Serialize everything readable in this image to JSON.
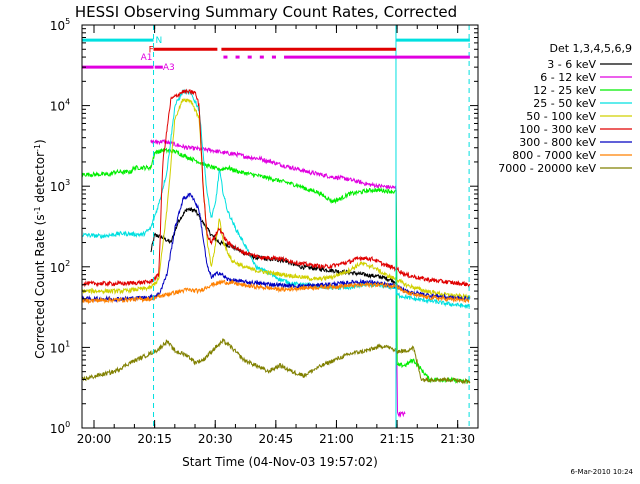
{
  "chart_data": {
    "type": "line",
    "title": "HESSI Observing Summary Count Rates, Corrected",
    "xlabel": "Start Time (04-Nov-03 19:57:02)",
    "ylabel": "Corrected Count Rate (s⁻¹ detector⁻¹)",
    "ylabel_parts": {
      "base": "Corrected Count Rate (s",
      "sup1": "-1",
      "mid": " detector",
      "sup2": "-1",
      "end": ")"
    },
    "x_units": "minutes after 19:57:02",
    "xlim": [
      0,
      98
    ],
    "ylim": [
      1,
      100000
    ],
    "yscale": "log",
    "x_ticks": [
      {
        "label": "20:00",
        "x": 2.97
      },
      {
        "label": "20:15",
        "x": 17.97
      },
      {
        "label": "20:30",
        "x": 32.97
      },
      {
        "label": "20:45",
        "x": 47.97
      },
      {
        "label": "21:00",
        "x": 62.97
      },
      {
        "label": "21:15",
        "x": 77.97
      },
      {
        "label": "21:30",
        "x": 92.97
      }
    ],
    "y_ticks": [
      {
        "base": "10",
        "exp": "0",
        "y": 1
      },
      {
        "base": "10",
        "exp": "1",
        "y": 10
      },
      {
        "base": "10",
        "exp": "2",
        "y": 100
      },
      {
        "base": "10",
        "exp": "3",
        "y": 1000
      },
      {
        "base": "10",
        "exp": "4",
        "y": 10000
      },
      {
        "base": "10",
        "exp": "5",
        "y": 100000
      }
    ],
    "legend_title": "Det 1,3,4,5,6,9",
    "legend_position": "right",
    "series": [
      {
        "name": "3 - 6 keV",
        "color": "#000000",
        "points": [
          [
            17,
            150
          ],
          [
            18,
            250
          ],
          [
            20,
            230
          ],
          [
            22,
            200
          ],
          [
            24,
            380
          ],
          [
            26,
            520
          ],
          [
            28,
            500
          ],
          [
            30,
            350
          ],
          [
            32,
            250
          ],
          [
            34,
            200
          ],
          [
            37,
            180
          ],
          [
            40,
            150
          ],
          [
            43,
            130
          ],
          [
            46,
            125
          ],
          [
            50,
            120
          ],
          [
            54,
            100
          ],
          [
            58,
            95
          ],
          [
            62,
            90
          ],
          [
            66,
            85
          ],
          [
            70,
            80
          ],
          [
            74,
            75
          ],
          [
            76,
            70
          ],
          [
            77.8,
            65
          ]
        ]
      },
      {
        "name": "6 - 12 keV",
        "color": "#e000e0",
        "points": [
          [
            17,
            3500
          ],
          [
            20,
            3600
          ],
          [
            23,
            3300
          ],
          [
            26,
            3000
          ],
          [
            29,
            2900
          ],
          [
            32,
            2800
          ],
          [
            35,
            2600
          ],
          [
            38,
            2500
          ],
          [
            41,
            2300
          ],
          [
            44,
            2200
          ],
          [
            47,
            2000
          ],
          [
            50,
            1800
          ],
          [
            53,
            1650
          ],
          [
            56,
            1500
          ],
          [
            59,
            1400
          ],
          [
            62,
            1300
          ],
          [
            65,
            1250
          ],
          [
            68,
            1150
          ],
          [
            71,
            1050
          ],
          [
            74,
            1000
          ],
          [
            77.8,
            950
          ],
          [
            78,
            1.5
          ],
          [
            80,
            1.5
          ]
        ]
      },
      {
        "name": "12 - 25 keV",
        "color": "#00ee00",
        "points": [
          [
            0,
            1400
          ],
          [
            7,
            1400
          ],
          [
            8,
            1500
          ],
          [
            12,
            1500
          ],
          [
            13,
            1700
          ],
          [
            17,
            1700
          ],
          [
            18,
            2600
          ],
          [
            20,
            2800
          ],
          [
            23,
            2700
          ],
          [
            26,
            2300
          ],
          [
            28,
            2100
          ],
          [
            31,
            1800
          ],
          [
            34,
            1600
          ],
          [
            36,
            1700
          ],
          [
            39,
            1500
          ],
          [
            42,
            1400
          ],
          [
            45,
            1300
          ],
          [
            48,
            1200
          ],
          [
            51,
            1100
          ],
          [
            54,
            1000
          ],
          [
            56,
            900
          ],
          [
            58,
            860
          ],
          [
            60,
            750
          ],
          [
            62,
            650
          ],
          [
            64,
            700
          ],
          [
            66,
            800
          ],
          [
            69,
            850
          ],
          [
            72,
            900
          ],
          [
            75,
            880
          ],
          [
            77.8,
            850
          ],
          [
            78,
            6
          ],
          [
            80,
            6
          ],
          [
            82,
            7
          ],
          [
            86,
            4
          ],
          [
            90,
            4
          ],
          [
            94,
            3.8
          ],
          [
            96,
            3.8
          ]
        ]
      },
      {
        "name": "25 - 50 keV",
        "color": "#00e0e0",
        "points": [
          [
            0,
            250
          ],
          [
            5,
            240
          ],
          [
            10,
            260
          ],
          [
            15,
            250
          ],
          [
            17,
            300
          ],
          [
            19,
            600
          ],
          [
            21,
            1500
          ],
          [
            23,
            10000
          ],
          [
            25,
            15000
          ],
          [
            27,
            14000
          ],
          [
            29,
            9000
          ],
          [
            30,
            2500
          ],
          [
            31,
            800
          ],
          [
            32,
            400
          ],
          [
            33,
            600
          ],
          [
            34,
            1600
          ],
          [
            35,
            800
          ],
          [
            36,
            500
          ],
          [
            38,
            300
          ],
          [
            40,
            200
          ],
          [
            43,
            100
          ],
          [
            46,
            85
          ],
          [
            49,
            70
          ],
          [
            52,
            62
          ],
          [
            55,
            60
          ],
          [
            58,
            58
          ],
          [
            62,
            55
          ],
          [
            66,
            55
          ],
          [
            70,
            60
          ],
          [
            74,
            58
          ],
          [
            77.8,
            55
          ],
          [
            78,
            45
          ],
          [
            82,
            40
          ],
          [
            86,
            38
          ],
          [
            90,
            35
          ],
          [
            94,
            33
          ],
          [
            96,
            32
          ]
        ]
      },
      {
        "name": "50 - 100 keV",
        "color": "#d0d000",
        "points": [
          [
            0,
            50
          ],
          [
            10,
            50
          ],
          [
            17,
            55
          ],
          [
            19,
            70
          ],
          [
            21,
            500
          ],
          [
            23,
            7000
          ],
          [
            25,
            12000
          ],
          [
            27,
            11500
          ],
          [
            29,
            7000
          ],
          [
            30,
            1000
          ],
          [
            31,
            200
          ],
          [
            32,
            100
          ],
          [
            33,
            180
          ],
          [
            34,
            400
          ],
          [
            35,
            200
          ],
          [
            37,
            120
          ],
          [
            40,
            100
          ],
          [
            43,
            90
          ],
          [
            46,
            85
          ],
          [
            50,
            80
          ],
          [
            54,
            75
          ],
          [
            58,
            70
          ],
          [
            62,
            75
          ],
          [
            66,
            90
          ],
          [
            69,
            110
          ],
          [
            72,
            100
          ],
          [
            75,
            80
          ],
          [
            77.8,
            70
          ],
          [
            80,
            60
          ],
          [
            85,
            50
          ],
          [
            90,
            45
          ],
          [
            96,
            42
          ]
        ]
      },
      {
        "name": "100 - 300 keV",
        "color": "#e00000",
        "points": [
          [
            0,
            62
          ],
          [
            10,
            62
          ],
          [
            17,
            65
          ],
          [
            19,
            80
          ],
          [
            20,
            2000
          ],
          [
            22,
            12000
          ],
          [
            25,
            15000
          ],
          [
            28,
            14500
          ],
          [
            29,
            10000
          ],
          [
            30,
            900
          ],
          [
            31,
            250
          ],
          [
            32,
            200
          ],
          [
            34,
            300
          ],
          [
            36,
            200
          ],
          [
            39,
            160
          ],
          [
            42,
            140
          ],
          [
            45,
            130
          ],
          [
            48,
            130
          ],
          [
            51,
            120
          ],
          [
            54,
            110
          ],
          [
            57,
            105
          ],
          [
            60,
            100
          ],
          [
            63,
            105
          ],
          [
            66,
            115
          ],
          [
            69,
            130
          ],
          [
            72,
            125
          ],
          [
            75,
            105
          ],
          [
            77.8,
            95
          ],
          [
            80,
            80
          ],
          [
            85,
            70
          ],
          [
            90,
            65
          ],
          [
            96,
            60
          ]
        ]
      },
      {
        "name": "300 - 800 keV",
        "color": "#0000c0",
        "points": [
          [
            0,
            40
          ],
          [
            10,
            40
          ],
          [
            17,
            42
          ],
          [
            19,
            45
          ],
          [
            21,
            80
          ],
          [
            23,
            300
          ],
          [
            25,
            700
          ],
          [
            27,
            800
          ],
          [
            29,
            500
          ],
          [
            31,
            100
          ],
          [
            32,
            75
          ],
          [
            34,
            85
          ],
          [
            36,
            70
          ],
          [
            40,
            65
          ],
          [
            44,
            62
          ],
          [
            48,
            60
          ],
          [
            52,
            58
          ],
          [
            56,
            58
          ],
          [
            60,
            60
          ],
          [
            64,
            62
          ],
          [
            68,
            65
          ],
          [
            72,
            64
          ],
          [
            75,
            60
          ],
          [
            77.8,
            58
          ],
          [
            80,
            50
          ],
          [
            85,
            45
          ],
          [
            90,
            42
          ],
          [
            96,
            40
          ]
        ]
      },
      {
        "name": "800 - 7000 keV",
        "color": "#ff8000",
        "points": [
          [
            0,
            38
          ],
          [
            10,
            39
          ],
          [
            17,
            40
          ],
          [
            20,
            44
          ],
          [
            23,
            48
          ],
          [
            26,
            52
          ],
          [
            29,
            50
          ],
          [
            32,
            60
          ],
          [
            35,
            65
          ],
          [
            38,
            62
          ],
          [
            41,
            58
          ],
          [
            44,
            56
          ],
          [
            47,
            54
          ],
          [
            50,
            52
          ],
          [
            53,
            54
          ],
          [
            56,
            55
          ],
          [
            59,
            56
          ],
          [
            62,
            57
          ],
          [
            65,
            58
          ],
          [
            68,
            59
          ],
          [
            71,
            60
          ],
          [
            74,
            60
          ],
          [
            77.8,
            58
          ],
          [
            80,
            48
          ],
          [
            85,
            42
          ],
          [
            90,
            40
          ],
          [
            96,
            38
          ]
        ]
      },
      {
        "name": "7000 - 20000 keV",
        "color": "#808000",
        "points": [
          [
            0,
            4
          ],
          [
            4,
            4.5
          ],
          [
            8,
            5
          ],
          [
            12,
            6.5
          ],
          [
            16,
            8
          ],
          [
            19,
            9.5
          ],
          [
            21,
            12
          ],
          [
            23,
            9
          ],
          [
            26,
            8
          ],
          [
            28,
            6.5
          ],
          [
            30,
            7
          ],
          [
            33,
            10
          ],
          [
            35,
            12
          ],
          [
            37,
            10
          ],
          [
            40,
            7
          ],
          [
            43,
            6
          ],
          [
            46,
            5
          ],
          [
            49,
            6
          ],
          [
            52,
            5
          ],
          [
            55,
            4.5
          ],
          [
            58,
            5.5
          ],
          [
            61,
            6.5
          ],
          [
            64,
            7.5
          ],
          [
            67,
            8.5
          ],
          [
            70,
            9
          ],
          [
            73,
            10
          ],
          [
            75,
            10.5
          ],
          [
            77.8,
            9
          ],
          [
            80,
            9
          ],
          [
            82,
            10
          ],
          [
            84,
            4
          ],
          [
            90,
            4
          ],
          [
            96,
            3.8
          ]
        ]
      }
    ],
    "vlines": [
      {
        "x": 17.7,
        "color": "#00e0e0",
        "dashed": true
      },
      {
        "x": 77.7,
        "color": "#00e0e0",
        "dashed": false
      },
      {
        "x": 95.8,
        "color": "#00e0e0",
        "dashed": true
      }
    ],
    "flag_bars": [
      {
        "label": "N",
        "color": "#00e0e0",
        "y": 65000,
        "segments": [
          [
            0,
            17.7
          ],
          [
            77.7,
            96
          ]
        ],
        "label_x": 18.2
      },
      {
        "label": "F",
        "color": "#e00000",
        "y": 50000,
        "segments": [
          [
            17.7,
            33.5
          ],
          [
            34.5,
            77.7
          ]
        ],
        "label_x": 16.5
      },
      {
        "label": "A1",
        "color": "#e000e0",
        "y": 40000,
        "segments": [
          [
            35,
            36
          ],
          [
            38,
            39
          ],
          [
            41,
            42
          ],
          [
            44,
            45
          ],
          [
            47,
            48
          ],
          [
            50,
            96
          ]
        ],
        "label_x": 14.5
      },
      {
        "label": "A3",
        "color": "#e000e0",
        "y": 30000,
        "segments": [
          [
            0,
            17.7
          ],
          [
            18,
            20
          ]
        ],
        "label_x": 20
      }
    ]
  },
  "footer": {
    "date_stamp": "6-Mar-2010 10:24"
  }
}
